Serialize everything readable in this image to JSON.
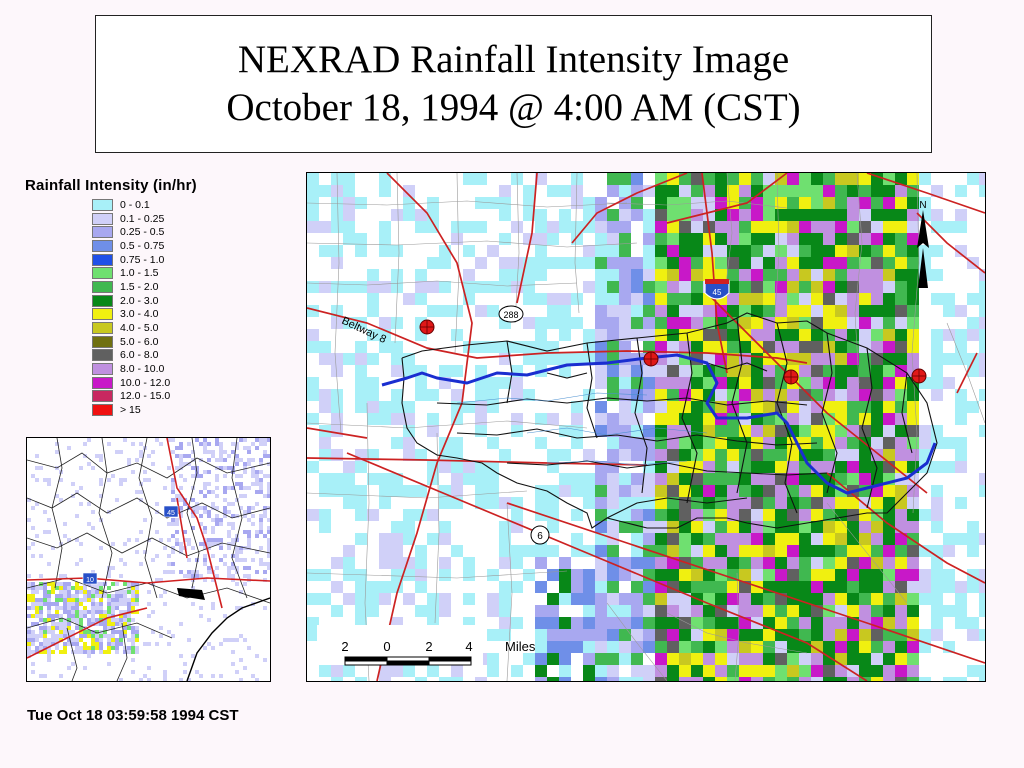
{
  "title": {
    "line1": "NEXRAD Rainfall Intensity Image",
    "line2": "October 18, 1994 @ 4:00 AM (CST)"
  },
  "legend": {
    "title": "Rainfall Intensity (in/hr)",
    "items": [
      {
        "label": "0 - 0.1",
        "color": "#a8f0f8"
      },
      {
        "label": "0.1 - 0.25",
        "color": "#d0d0f8"
      },
      {
        "label": "0.25 - 0.5",
        "color": "#a8a8f0"
      },
      {
        "label": "0.5 - 0.75",
        "color": "#6f8fe8"
      },
      {
        "label": "0.75 - 1.0",
        "color": "#1f50e8"
      },
      {
        "label": "1.0 - 1.5",
        "color": "#6fe070"
      },
      {
        "label": "1.5 - 2.0",
        "color": "#40b850"
      },
      {
        "label": "2.0 - 3.0",
        "color": "#088818"
      },
      {
        "label": "3.0 - 4.0",
        "color": "#f0f010"
      },
      {
        "label": "4.0 - 5.0",
        "color": "#c8c820"
      },
      {
        "label": "5.0 - 6.0",
        "color": "#707010"
      },
      {
        "label": "6.0 - 8.0",
        "color": "#606060"
      },
      {
        "label": "8.0 - 10.0",
        "color": "#c090e0"
      },
      {
        "label": "10.0 - 12.0",
        "color": "#c818c8"
      },
      {
        "label": "12.0 - 15.0",
        "color": "#c82860"
      },
      {
        "label": "> 15",
        "color": "#f01010"
      }
    ]
  },
  "map": {
    "beltway_label": "Beltway 8",
    "highway_288": "288",
    "highway_6": "6",
    "interstate_45": "45",
    "north_label": "N",
    "scale": {
      "ticks": [
        "2",
        "0",
        "2",
        "4"
      ],
      "unit": "Miles"
    }
  },
  "inset": {
    "interstate_45": "45",
    "interstate_10": "10"
  },
  "footer": {
    "timestamp": "Tue Oct 18 03:59:58 1994 CST"
  }
}
